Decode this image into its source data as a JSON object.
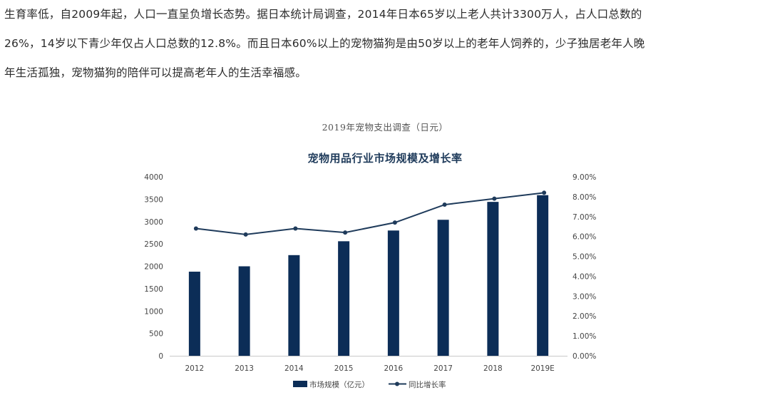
{
  "article": {
    "lines": [
      "生育率低，自2009年起，人口一直呈负增长态势。据日本统计局调查，2014年日本65岁以上老人共计3300万人，占人口总数的",
      "26%，14岁以下青少年仅占人口总数的12.8%。而且日本60%以上的宠物猫狗是由50岁以上的老年人饲养的，少子独居老年人晚",
      "年生活孤独，宠物猫狗的陪伴可以提高老年人的生活幸福感。"
    ]
  },
  "caption": "2019年宠物支出调查（日元）",
  "colors": {
    "bar": "#0c2d57",
    "line": "#1f3b5b",
    "axis": "#c8c8c8"
  },
  "chart_data": {
    "type": "bar",
    "title": "宠物用品行业市场规模及增长率",
    "categories": [
      "2012",
      "2013",
      "2014",
      "2015",
      "2016",
      "2017",
      "2018",
      "2019E"
    ],
    "series": [
      {
        "name": "市场规模（亿元）",
        "type": "bar",
        "axis": "left",
        "values": [
          1880,
          2000,
          2250,
          2560,
          2800,
          3040,
          3440,
          3590
        ]
      },
      {
        "name": "同比增长率",
        "type": "line",
        "axis": "right",
        "values": [
          6.4,
          6.1,
          6.4,
          6.2,
          6.7,
          7.6,
          7.9,
          8.2
        ]
      }
    ],
    "y_left": {
      "min": 0,
      "max": 4000,
      "step": 500,
      "ticks": [
        "0",
        "500",
        "1000",
        "1500",
        "2000",
        "2500",
        "3000",
        "3500",
        "4000"
      ]
    },
    "y_right": {
      "min": 0,
      "max": 9,
      "step": 1,
      "ticks": [
        "0.00%",
        "1.00%",
        "2.00%",
        "3.00%",
        "4.00%",
        "5.00%",
        "6.00%",
        "7.00%",
        "8.00%",
        "9.00%"
      ]
    },
    "grid": false,
    "legend": "bottom"
  }
}
